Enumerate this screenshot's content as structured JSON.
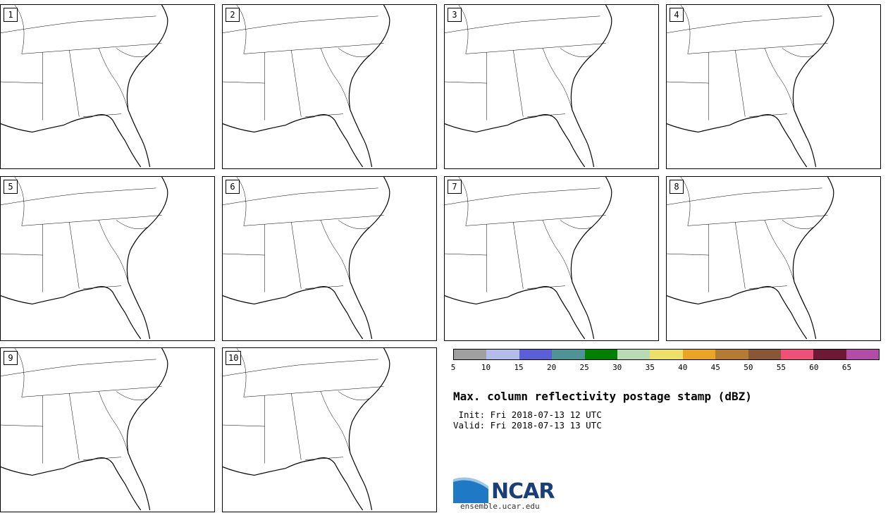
{
  "panels": [
    {
      "label": "1"
    },
    {
      "label": "2"
    },
    {
      "label": "3"
    },
    {
      "label": "4"
    },
    {
      "label": "5"
    },
    {
      "label": "6"
    },
    {
      "label": "7"
    },
    {
      "label": "8"
    },
    {
      "label": "9"
    },
    {
      "label": "10"
    }
  ],
  "colorbar": {
    "colors": [
      "#a0a0a0",
      "#b4bcea",
      "#5a5fd8",
      "#4f9396",
      "#008000",
      "#b9dbb4",
      "#ede068",
      "#e9a523",
      "#b47b35",
      "#8a5638",
      "#ef5077",
      "#6d1935",
      "#b24ca6"
    ],
    "ticks": [
      "5",
      "10",
      "15",
      "20",
      "25",
      "30",
      "35",
      "40",
      "45",
      "50",
      "55",
      "60",
      "65"
    ]
  },
  "title": "Max. column reflectivity postage stamp (dBZ)",
  "init": " Init: Fri 2018-07-13 12 UTC",
  "valid": "Valid: Fri 2018-07-13 13 UTC",
  "logo": {
    "text": "NCAR",
    "url": "ensemble.ucar.edu"
  }
}
